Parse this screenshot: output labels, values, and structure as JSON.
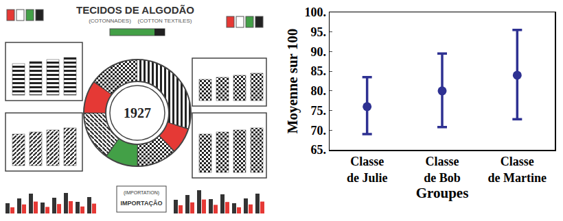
{
  "chart_data": {
    "type": "scatter",
    "x_label": "Groupes",
    "y_label": "Moyenne sur 100",
    "categories": [
      "Classe de Julie",
      "Classe de Bob",
      "Classe de Martine"
    ],
    "values": [
      76,
      80,
      84
    ],
    "error_plus": [
      7.5,
      9.5,
      11.5
    ],
    "error_minus": [
      7,
      9.2,
      11.2
    ],
    "color": "#2e3192",
    "marker": "circle",
    "grid": false,
    "ylim": [
      65,
      100
    ],
    "yticks": [
      {
        "value": 65,
        "label": "65."
      },
      {
        "value": 70,
        "label": "70."
      },
      {
        "value": 75,
        "label": "75."
      },
      {
        "value": 80,
        "label": "80."
      },
      {
        "value": 85,
        "label": "85."
      },
      {
        "value": 90,
        "label": "90."
      },
      {
        "value": 95,
        "label": "95."
      },
      {
        "value": 100,
        "label": "100."
      }
    ]
  },
  "infographic": {
    "title": "TECIDOS DE ALGODÃO",
    "subtitles": [
      "(COTONNADES)",
      "(COTTON TEXTILES)"
    ],
    "center_label": "1927",
    "bottom_caption": "(IMPORTATION)",
    "bottom_label": "IMPORTAÇÃO"
  }
}
